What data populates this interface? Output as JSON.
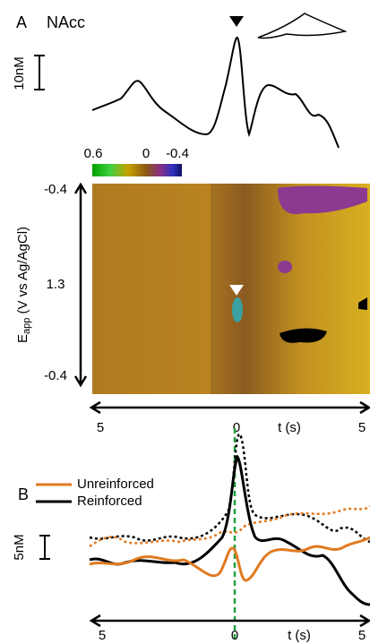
{
  "panel_a": {
    "label": "A",
    "region": "NAcc",
    "scale_bar": "10nM",
    "colorbar": {
      "ticks": [
        "0.6",
        "0",
        "-0.4"
      ]
    },
    "y_axis": {
      "label_main": "E",
      "label_sub": "app",
      "label_rest": " (V vs Ag/AgCl)",
      "ticks": [
        "-0.4",
        "1.3",
        "-0.4"
      ]
    },
    "x_axis": {
      "ticks": [
        "5",
        "0",
        "5"
      ],
      "label": "t (s)"
    }
  },
  "panel_b": {
    "label": "B",
    "legend": [
      "Unreinforced",
      "Reinforced"
    ],
    "scale_bar": "5nM",
    "x_axis": {
      "ticks": [
        "5",
        "0",
        "5"
      ],
      "label": "t (s)"
    }
  }
}
